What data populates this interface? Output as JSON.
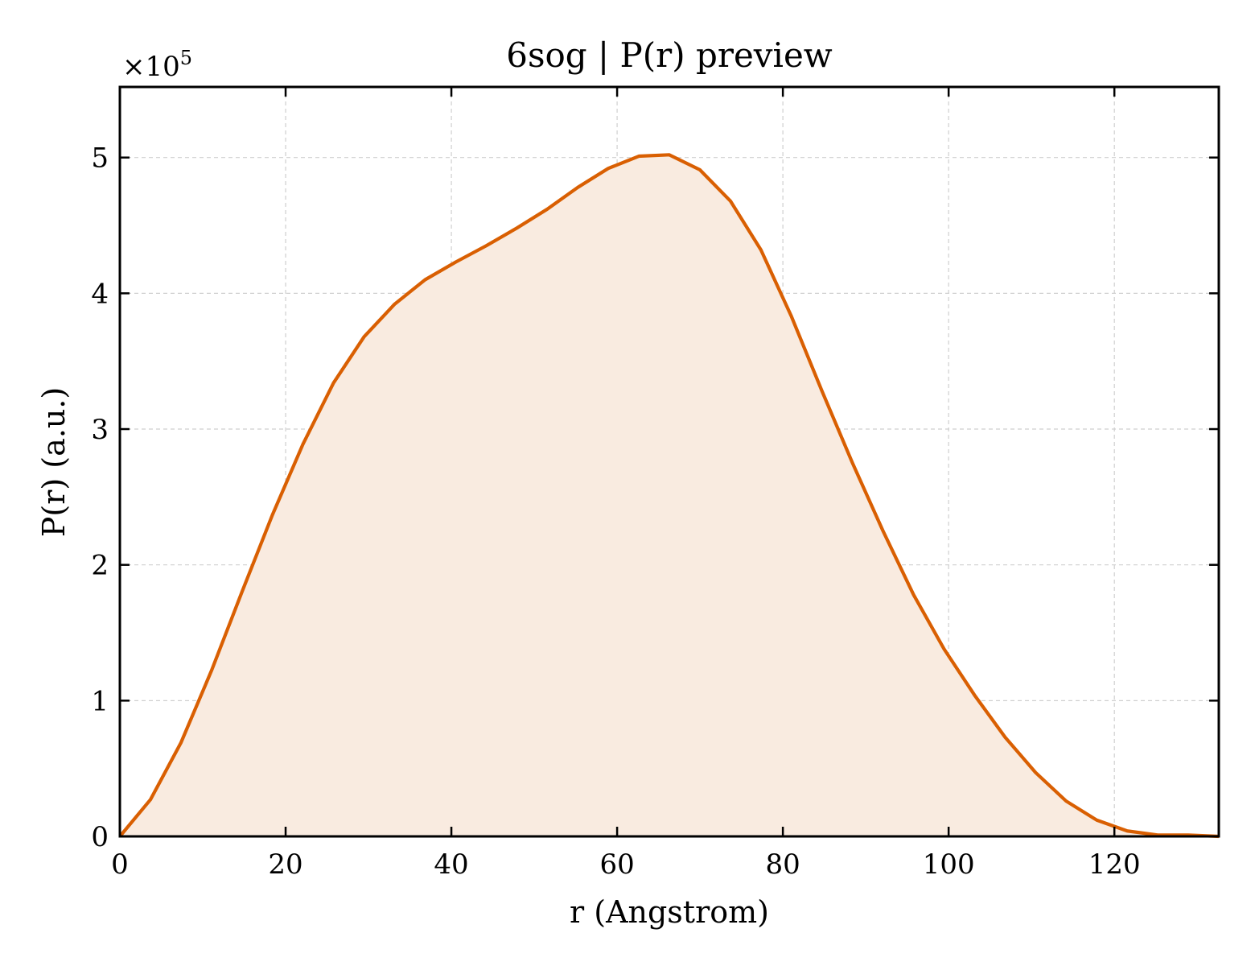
{
  "chart_data": {
    "type": "area",
    "title": "6sog | P(r) preview",
    "xlabel": "r (Angstrom)",
    "ylabel": "P(r) (a.u.)",
    "y_multiplier": "×10",
    "y_multiplier_exponent": "5",
    "xlim": [
      0,
      132.6
    ],
    "ylim": [
      0,
      5.52
    ],
    "xticks": [
      0,
      20,
      40,
      60,
      80,
      100,
      120
    ],
    "yticks": [
      0,
      1,
      2,
      3,
      4,
      5
    ],
    "grid": true,
    "line_color": "#d95f02",
    "fill_color": "#f9ebe0",
    "series": [
      {
        "x": [
          0,
          3.68,
          7.37,
          11.05,
          14.73,
          18.42,
          22.1,
          25.78,
          29.47,
          33.15,
          36.83,
          40.52,
          44.2,
          47.88,
          51.57,
          55.25,
          58.93,
          62.62,
          66.3,
          69.98,
          73.67,
          77.35,
          81.03,
          84.72,
          88.4,
          92.08,
          95.77,
          99.45,
          103.13,
          106.82,
          110.5,
          114.18,
          117.87,
          121.55,
          125.23,
          128.92,
          132.6
        ],
        "y": [
          0,
          0.27,
          0.69,
          1.22,
          1.8,
          2.37,
          2.89,
          3.34,
          3.68,
          3.92,
          4.1,
          4.23,
          4.35,
          4.48,
          4.62,
          4.78,
          4.92,
          5.01,
          5.02,
          4.91,
          4.68,
          4.32,
          3.83,
          3.28,
          2.75,
          2.25,
          1.78,
          1.38,
          1.04,
          0.73,
          0.47,
          0.26,
          0.12,
          0.04,
          0.01,
          0.01,
          0.0
        ]
      }
    ]
  }
}
